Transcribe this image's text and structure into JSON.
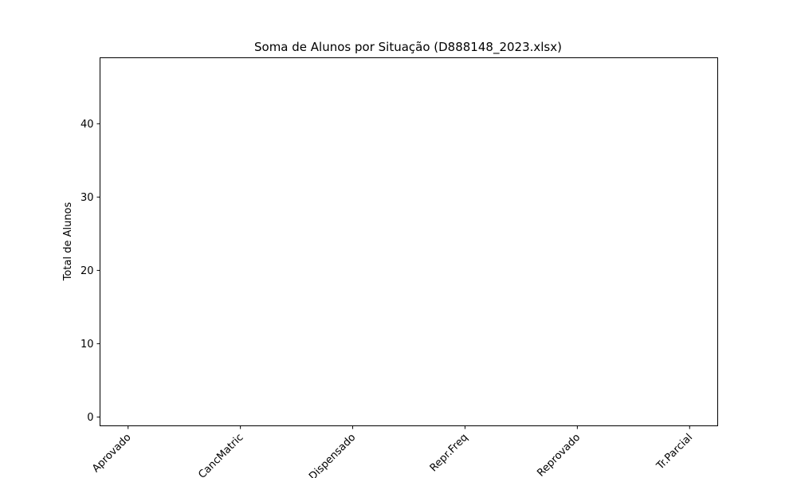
{
  "chart_data": {
    "type": "bar",
    "title": "Soma de Alunos por Situação (D888148_2023.xlsx)",
    "xlabel": "",
    "ylabel": "Total de Alunos",
    "categories": [
      "Aprovado",
      "CancMatric",
      "Dispensado",
      "Repr.Freq",
      "Reprovado",
      "Tr.Parcial"
    ],
    "values": [
      0,
      0,
      0,
      0,
      0,
      0
    ],
    "ylim": [
      -1.2,
      49
    ],
    "yticks": [
      0,
      10,
      20,
      30,
      40
    ],
    "grid": false,
    "bar_color": "#1f77b4"
  }
}
